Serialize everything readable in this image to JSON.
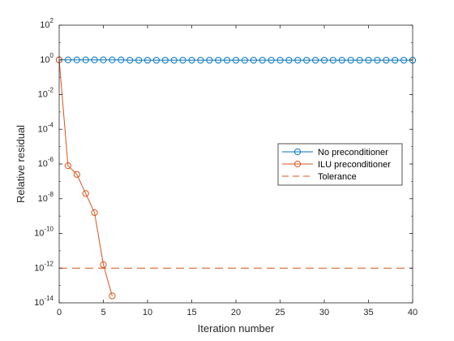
{
  "chart_data": {
    "type": "line",
    "title": "",
    "xlabel": "Iteration number",
    "ylabel": "Relative residual",
    "xlim": [
      0,
      40
    ],
    "ylim_log10": [
      -14,
      2
    ],
    "yscale": "log",
    "grid": false,
    "legend_placement": "right-middle",
    "x_ticks": [
      "0",
      "5",
      "10",
      "15",
      "20",
      "25",
      "30",
      "35",
      "40"
    ],
    "y_ticks": [
      {
        "base": "10",
        "exp": "2"
      },
      {
        "base": "10",
        "exp": "0"
      },
      {
        "base": "10",
        "exp": "-2"
      },
      {
        "base": "10",
        "exp": "-4"
      },
      {
        "base": "10",
        "exp": "-6"
      },
      {
        "base": "10",
        "exp": "-8"
      },
      {
        "base": "10",
        "exp": "-10"
      },
      {
        "base": "10",
        "exp": "-12"
      },
      {
        "base": "10",
        "exp": "-14"
      }
    ],
    "series": [
      {
        "name": "No preconditioner",
        "color": "#0072bd",
        "marker": "circle",
        "line": "solid",
        "x": [
          0,
          1,
          2,
          3,
          4,
          5,
          6,
          7,
          8,
          9,
          10,
          11,
          12,
          13,
          14,
          15,
          16,
          17,
          18,
          19,
          20,
          21,
          22,
          23,
          24,
          25,
          26,
          27,
          28,
          29,
          30,
          31,
          32,
          33,
          34,
          35,
          36,
          37,
          38,
          39,
          40
        ],
        "y_log10": [
          0,
          0,
          0,
          0,
          0,
          0,
          0,
          0,
          -0.02,
          -0.02,
          -0.02,
          -0.02,
          -0.02,
          -0.02,
          -0.02,
          -0.02,
          -0.02,
          -0.02,
          -0.02,
          -0.02,
          -0.02,
          -0.02,
          -0.02,
          -0.02,
          -0.02,
          -0.02,
          -0.02,
          -0.02,
          -0.02,
          -0.02,
          -0.02,
          -0.02,
          -0.02,
          -0.02,
          -0.02,
          -0.02,
          -0.02,
          -0.02,
          -0.02,
          -0.02,
          -0.02
        ]
      },
      {
        "name": "ILU preconditioner",
        "color": "#d95319",
        "marker": "circle",
        "line": "solid",
        "x": [
          0,
          1,
          2,
          3,
          4,
          5,
          6
        ],
        "y_log10": [
          0,
          -6.1,
          -6.6,
          -7.7,
          -8.8,
          -11.8,
          -13.6
        ]
      },
      {
        "name": "Tolerance",
        "color": "#d95319",
        "marker": "none",
        "line": "dashed",
        "x": [
          0,
          40
        ],
        "y_log10": [
          -12,
          -12
        ]
      }
    ]
  }
}
